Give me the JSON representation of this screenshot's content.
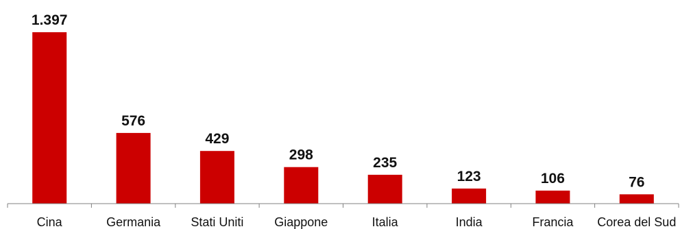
{
  "chart_data": {
    "type": "bar",
    "title": "",
    "xlabel": "",
    "ylabel": "",
    "categories": [
      "Cina",
      "Germania",
      "Stati Uniti",
      "Giappone",
      "Italia",
      "India",
      "Francia",
      "Corea del Sud"
    ],
    "values": [
      1397,
      576,
      429,
      298,
      235,
      123,
      106,
      76
    ],
    "value_labels": [
      "1.397",
      "576",
      "429",
      "298",
      "235",
      "123",
      "106",
      "76"
    ],
    "ylim": [
      0,
      1397
    ],
    "grid": false,
    "legend": "none",
    "colors": {
      "bar": "#cc0000",
      "axis": "#808080",
      "text": "#111111"
    }
  }
}
